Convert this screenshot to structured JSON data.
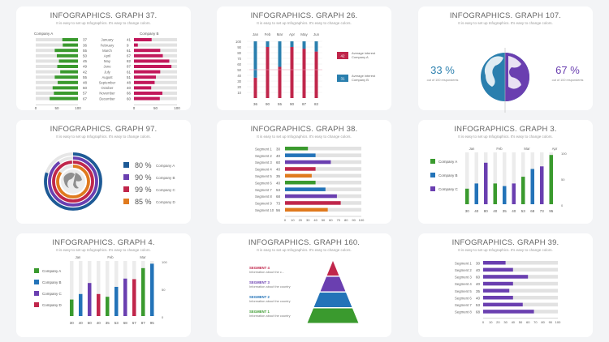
{
  "colors": {
    "green": "#3a9a2e",
    "pink": "#c2185b",
    "blue": "#2373b8",
    "purple": "#6a3fb0",
    "orange": "#e07a1e",
    "red": "#c0264b",
    "teal": "#2a7fae",
    "gray": "#e2e2e2",
    "navy": "#1d5a96"
  },
  "subtitle": "It is easy to set up Infographics. It's easy to change colors.",
  "chart_data": [
    {
      "type": "bar",
      "title": "INFOGRAPHICS. GRAPH 37.",
      "series": [
        {
          "name": "Company A",
          "values": [
            37,
            36,
            55,
            50,
            45,
            49,
            42,
            55,
            48,
            60,
            57,
            67
          ]
        },
        {
          "name": "Company B",
          "values": [
            41,
            9,
            61,
            67,
            82,
            87,
            61,
            51,
            48,
            40,
            66,
            60
          ]
        }
      ],
      "categories": [
        "January",
        "February",
        "March",
        "April",
        "May",
        "June",
        "July",
        "August",
        "September",
        "October",
        "November",
        "December"
      ],
      "x_ticks": [
        "0",
        "50",
        "100"
      ]
    },
    {
      "type": "bar",
      "title": "INFOGRAPHICS. GRAPH 26.",
      "categories": [
        "Jan",
        "Feb",
        "Mar",
        "Apr",
        "May",
        "Jun"
      ],
      "series": [
        {
          "name": "Company A",
          "values": [
            36,
            90,
            55,
            90,
            87,
            82
          ]
        },
        {
          "name": "Company B",
          "values": [
            64,
            10,
            45,
            10,
            13,
            18
          ]
        }
      ],
      "category_values": [
        "36",
        "90",
        "55",
        "90",
        "87",
        "82"
      ],
      "legend": [
        {
          "value": "42",
          "label": "Average interest Company A"
        },
        {
          "value": "31",
          "label": "Average interest Company B"
        }
      ],
      "y_ticks": [
        "100",
        "90",
        "80",
        "70",
        "60",
        "50",
        "40",
        "30",
        "20",
        "10"
      ]
    },
    {
      "type": "pie",
      "title": "INFOGRAPHICS. GRAPH 107.",
      "left": {
        "value": "33 %",
        "label": "out of 100 respondents"
      },
      "right": {
        "value": "67 %",
        "label": "out of 100 respondents"
      }
    },
    {
      "type": "pie",
      "title": "INFOGRAPHICS. GRAPH 97.",
      "items": [
        {
          "value": "80 %",
          "label": "Company A",
          "v": 80
        },
        {
          "value": "90 %",
          "label": "Company B",
          "v": 90
        },
        {
          "value": "99 %",
          "label": "Company C",
          "v": 99
        },
        {
          "value": "85 %",
          "label": "Company D",
          "v": 85
        }
      ]
    },
    {
      "type": "bar",
      "title": "INFOGRAPHICS. GRAPH 38.",
      "categories": [
        "Segment 1",
        "Segment 2",
        "Segment 3",
        "Segment 4",
        "Segment 5",
        "Segment 6",
        "Segment 7",
        "Segment 8",
        "Segment 9",
        "Segment 10"
      ],
      "values": [
        30,
        40,
        60,
        40,
        35,
        40,
        53,
        68,
        73,
        56
      ],
      "x_ticks": [
        "0",
        "10",
        "20",
        "30",
        "40",
        "50",
        "60",
        "70",
        "80",
        "90",
        "100"
      ]
    },
    {
      "type": "bar",
      "title": "INFOGRAPHICS. GRAPH 3.",
      "legend": [
        "Company A",
        "Company B",
        "Company C"
      ],
      "top_labels": [
        "Jan",
        "Feb",
        "Mar",
        "Apr"
      ],
      "values": [
        30,
        40,
        80,
        40,
        35,
        40,
        53,
        68,
        73,
        95
      ],
      "category_values": [
        "30",
        "40",
        "80",
        "40",
        "35",
        "40",
        "53",
        "68",
        "73",
        "95"
      ],
      "y_ticks": [
        "100",
        "50",
        "0"
      ]
    },
    {
      "type": "bar",
      "title": "INFOGRAPHICS. GRAPH 4.",
      "legend": [
        "Company A",
        "Company B",
        "Company C",
        "Company D"
      ],
      "top_labels": [
        "Jan",
        "Feb",
        "Mar"
      ],
      "values": [
        30,
        40,
        60,
        40,
        35,
        53,
        68,
        67,
        87,
        95
      ],
      "category_values": [
        "30",
        "40",
        "60",
        "40",
        "35",
        "53",
        "68",
        "67",
        "87",
        "95"
      ],
      "y_ticks": [
        "100",
        "50",
        "0"
      ]
    },
    {
      "type": "area",
      "title": "INFOGRAPHICS. GRAPH 160.",
      "segments": [
        {
          "name": "SEGMENT 4",
          "info": "Information about the c..."
        },
        {
          "name": "SEGMENT 3",
          "info": "Information about the country"
        },
        {
          "name": "SEGMENT 2",
          "info": "Information about the country"
        },
        {
          "name": "SEGMENT 1",
          "info": "Information about the country"
        }
      ]
    },
    {
      "type": "bar",
      "title": "INFOGRAPHICS. GRAPH 39.",
      "categories": [
        "Segment 1",
        "Segment 2",
        "Segment 3",
        "Segment 4",
        "Segment 5",
        "Segment 6",
        "Segment 7",
        "Segment 8"
      ],
      "values": [
        30,
        40,
        60,
        40,
        35,
        40,
        53,
        68
      ],
      "x_ticks": [
        "0",
        "10",
        "20",
        "30",
        "40",
        "50",
        "60",
        "70",
        "80",
        "90",
        "100"
      ]
    }
  ]
}
